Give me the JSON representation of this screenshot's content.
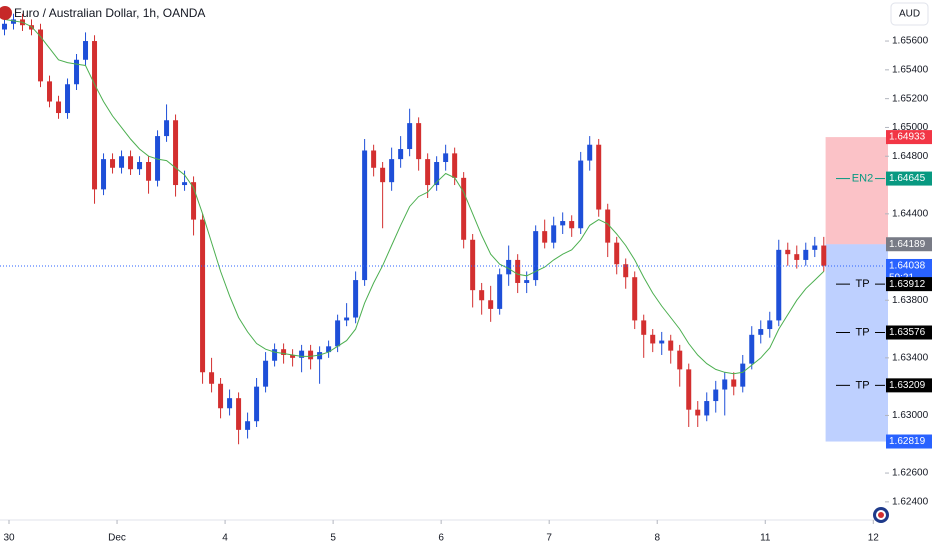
{
  "chart_data": {
    "type": "candlestick",
    "title": "Euro / Australian Dollar, 1h, OANDA",
    "currency": "AUD",
    "up_color": "#1e4fd8",
    "down_color": "#d32f2f",
    "open": [
      1.6568,
      1.6572,
      1.6575,
      1.6571,
      1.6568,
      1.6532,
      1.6518,
      1.651,
      1.653,
      1.6547,
      1.656,
      1.6457,
      1.6478,
      1.6472,
      1.648,
      1.6471,
      1.6476,
      1.6463,
      1.6494,
      1.6505,
      1.646,
      1.6462,
      1.6436,
      1.633,
      1.6322,
      1.6305,
      1.6312,
      1.629,
      1.6296,
      1.632,
      1.6338,
      1.6346,
      1.6342,
      1.634,
      1.6345,
      1.6339,
      1.6344,
      1.6348,
      1.6366,
      1.6368,
      1.6394,
      1.6484,
      1.6472,
      1.6462,
      1.6478,
      1.6485,
      1.6503,
      1.6478,
      1.646,
      1.6476,
      1.6482,
      1.6465,
      1.6422,
      1.6387,
      1.638,
      1.6374,
      1.6398,
      1.6408,
      1.6392,
      1.6394,
      1.6428,
      1.642,
      1.6432,
      1.6435,
      1.643,
      1.6477,
      1.6488,
      1.6443,
      1.642,
      1.6405,
      1.6396,
      1.6366,
      1.6356,
      1.635,
      1.6352,
      1.6345,
      1.6332,
      1.6304,
      1.63,
      1.631,
      1.6318,
      1.6325,
      1.632,
      1.6336,
      1.6356,
      1.636,
      1.6366,
      1.6415,
      1.6412,
      1.6408,
      1.6415,
      1.6418
    ],
    "high": [
      1.6576,
      1.6579,
      1.6579,
      1.6575,
      1.6572,
      1.6536,
      1.6522,
      1.6534,
      1.6551,
      1.6566,
      1.6564,
      1.6482,
      1.6482,
      1.6484,
      1.6484,
      1.648,
      1.648,
      1.6498,
      1.6516,
      1.6509,
      1.647,
      1.6466,
      1.644,
      1.634,
      1.6326,
      1.6318,
      1.6316,
      1.6302,
      1.6326,
      1.6344,
      1.635,
      1.635,
      1.6346,
      1.6349,
      1.6349,
      1.6348,
      1.6352,
      1.637,
      1.6378,
      1.64,
      1.6492,
      1.6488,
      1.6476,
      1.6486,
      1.6494,
      1.6513,
      1.6507,
      1.6482,
      1.648,
      1.6488,
      1.6486,
      1.6469,
      1.6426,
      1.6392,
      1.639,
      1.6402,
      1.6418,
      1.6412,
      1.64,
      1.6432,
      1.6436,
      1.6438,
      1.6441,
      1.6439,
      1.6483,
      1.6494,
      1.6492,
      1.6447,
      1.6424,
      1.6409,
      1.64,
      1.637,
      1.636,
      1.6358,
      1.6356,
      1.6349,
      1.6336,
      1.631,
      1.6316,
      1.6324,
      1.633,
      1.633,
      1.6342,
      1.6362,
      1.6366,
      1.6372,
      1.6422,
      1.642,
      1.6418,
      1.642,
      1.6424,
      1.6424
    ],
    "low": [
      1.6564,
      1.6568,
      1.6567,
      1.6564,
      1.6528,
      1.6514,
      1.6506,
      1.6506,
      1.6526,
      1.6543,
      1.6447,
      1.6453,
      1.6468,
      1.6468,
      1.6467,
      1.6467,
      1.6454,
      1.6459,
      1.649,
      1.6452,
      1.6456,
      1.6425,
      1.6322,
      1.6316,
      1.6298,
      1.63,
      1.628,
      1.6284,
      1.6292,
      1.6316,
      1.6334,
      1.6336,
      1.6334,
      1.633,
      1.6332,
      1.6322,
      1.634,
      1.6344,
      1.6362,
      1.6364,
      1.639,
      1.6466,
      1.643,
      1.6456,
      1.6472,
      1.648,
      1.647,
      1.6451,
      1.6456,
      1.647,
      1.646,
      1.6416,
      1.6375,
      1.637,
      1.6365,
      1.637,
      1.639,
      1.6385,
      1.6385,
      1.639,
      1.6416,
      1.6416,
      1.6426,
      1.6424,
      1.6426,
      1.647,
      1.6438,
      1.641,
      1.6398,
      1.6388,
      1.636,
      1.634,
      1.6344,
      1.6342,
      1.6336,
      1.632,
      1.6292,
      1.6292,
      1.6296,
      1.6302,
      1.63,
      1.6314,
      1.6316,
      1.6332,
      1.635,
      1.6354,
      1.6362,
      1.6404,
      1.6402,
      1.6404,
      1.641,
      1.64
    ],
    "close": [
      1.6572,
      1.6575,
      1.6571,
      1.6568,
      1.6532,
      1.6518,
      1.651,
      1.653,
      1.6547,
      1.656,
      1.6457,
      1.6478,
      1.6472,
      1.648,
      1.6471,
      1.6476,
      1.6463,
      1.6494,
      1.6505,
      1.646,
      1.6462,
      1.6436,
      1.633,
      1.6322,
      1.6305,
      1.6312,
      1.629,
      1.6296,
      1.632,
      1.6338,
      1.6346,
      1.6342,
      1.634,
      1.6345,
      1.6339,
      1.6344,
      1.6348,
      1.6366,
      1.6368,
      1.6394,
      1.6484,
      1.6472,
      1.6462,
      1.6478,
      1.6485,
      1.6503,
      1.6478,
      1.646,
      1.6476,
      1.6482,
      1.6465,
      1.6422,
      1.6387,
      1.638,
      1.6374,
      1.6398,
      1.6408,
      1.6392,
      1.6394,
      1.6428,
      1.642,
      1.6432,
      1.6435,
      1.643,
      1.6477,
      1.6488,
      1.6443,
      1.642,
      1.6405,
      1.6396,
      1.6366,
      1.6356,
      1.635,
      1.6352,
      1.6345,
      1.6332,
      1.6304,
      1.63,
      1.631,
      1.6318,
      1.6325,
      1.632,
      1.6336,
      1.6356,
      1.636,
      1.6366,
      1.6415,
      1.6412,
      1.6408,
      1.6415,
      1.6418,
      1.6404
    ],
    "moving_average": {
      "color": "#4caf50",
      "values": [
        1.6575,
        1.6574,
        1.6573,
        1.657,
        1.6563,
        1.6555,
        1.6547,
        1.6545,
        1.6544,
        1.6543,
        1.653,
        1.6518,
        1.6508,
        1.65,
        1.6492,
        1.6485,
        1.648,
        1.6478,
        1.6477,
        1.6472,
        1.6467,
        1.6458,
        1.644,
        1.642,
        1.64,
        1.6383,
        1.6368,
        1.6358,
        1.635,
        1.6346,
        1.6344,
        1.6343,
        1.6342,
        1.6341,
        1.6341,
        1.6342,
        1.6344,
        1.6348,
        1.6352,
        1.636,
        1.6378,
        1.6392,
        1.6404,
        1.6418,
        1.6432,
        1.6445,
        1.6452,
        1.6455,
        1.6462,
        1.6468,
        1.6465,
        1.6455,
        1.644,
        1.6425,
        1.6412,
        1.6405,
        1.6402,
        1.6398,
        1.6397,
        1.64,
        1.6403,
        1.6408,
        1.6412,
        1.6415,
        1.6422,
        1.6432,
        1.6436,
        1.6433,
        1.6426,
        1.6418,
        1.6408,
        1.6396,
        1.6385,
        1.6376,
        1.6368,
        1.636,
        1.635,
        1.6342,
        1.6336,
        1.6332,
        1.633,
        1.6329,
        1.633,
        1.6335,
        1.634,
        1.6347,
        1.636,
        1.637,
        1.638,
        1.6388,
        1.6394,
        1.64
      ]
    },
    "xlim": [
      0,
      98.3
    ],
    "xticks": [
      {
        "value": 1,
        "label": "30"
      },
      {
        "value": 13,
        "label": "Dec"
      },
      {
        "value": 25,
        "label": "4"
      },
      {
        "value": 37,
        "label": "5"
      },
      {
        "value": 49,
        "label": "6"
      },
      {
        "value": 61,
        "label": "7"
      },
      {
        "value": 73,
        "label": "8"
      },
      {
        "value": 85,
        "label": "11"
      },
      {
        "value": 97,
        "label": "12"
      }
    ],
    "ylim": [
      1.62274,
      1.65885
    ],
    "yticks": [
      {
        "value": 1.656,
        "label": "1.65600"
      },
      {
        "value": 1.654,
        "label": "1.65400"
      },
      {
        "value": 1.652,
        "label": "1.65200"
      },
      {
        "value": 1.65,
        "label": "1.65000"
      },
      {
        "value": 1.648,
        "label": "1.64800"
      },
      {
        "value": 1.644,
        "label": "1.64400"
      },
      {
        "value": 1.638,
        "label": "1.63800"
      },
      {
        "value": 1.634,
        "label": "1.63400"
      },
      {
        "value": 1.63,
        "label": "1.63000"
      },
      {
        "value": 1.626,
        "label": "1.62600"
      },
      {
        "value": 1.624,
        "label": "1.62400"
      }
    ],
    "last_price": {
      "value": 1.64038,
      "countdown": "50:21",
      "color": "#2962ff"
    },
    "position": {
      "stop": 1.64933,
      "entry": 1.64189,
      "target": 1.62819,
      "stop_color": "#f23645",
      "entry_color": "#787b86",
      "target_color": "#2962ff"
    },
    "annotations": [
      {
        "text": "EN2",
        "value": 1.64645,
        "color": "#089981"
      },
      {
        "text": "TP",
        "value": 1.63912,
        "color": "#000000"
      },
      {
        "text": "TP",
        "value": 1.63576,
        "color": "#000000"
      },
      {
        "text": "TP",
        "value": 1.63209,
        "color": "#000000"
      }
    ]
  }
}
